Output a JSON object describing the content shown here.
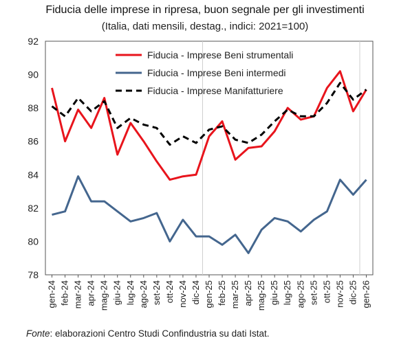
{
  "chart_data": {
    "type": "line",
    "title": "Fiducia delle imprese in ripresa, buon segnale per gli investimenti",
    "subtitle": "(Italia, dati mensili, destag., indici: 2021=100)",
    "source_label": "Fonte",
    "source_text": ": elaborazioni Centro Studi Confindustria su dati Istat.",
    "categories": [
      "gen-24",
      "feb-24",
      "mar-24",
      "apr-24",
      "mag-24",
      "giu-24",
      "lug-24",
      "ago-24",
      "set-24",
      "ott-24",
      "nov-24",
      "dic-24",
      "gen-25",
      "feb-25",
      "mar-25",
      "apr-25",
      "mag-25",
      "giu-25",
      "lug-25",
      "ago-25",
      "set-25",
      "ott-25",
      "nov-25",
      "dic-25",
      "gen-26"
    ],
    "ylim": [
      78,
      92
    ],
    "yticks": [
      78,
      80,
      82,
      84,
      86,
      88,
      90,
      92
    ],
    "grid": false,
    "legend_position": "top-right",
    "series": [
      {
        "name": "Fiducia - Imprese Beni strumentali",
        "color": "#e8141c",
        "style": "solid",
        "values": [
          89.2,
          86.0,
          87.9,
          86.8,
          88.6,
          85.2,
          87.1,
          86.0,
          84.8,
          83.7,
          83.9,
          84.0,
          86.3,
          87.2,
          84.9,
          85.6,
          85.7,
          86.6,
          88.0,
          87.3,
          87.5,
          89.2,
          90.2,
          87.8,
          89.1
        ]
      },
      {
        "name": "Fiducia - Imprese Beni intermedi",
        "color": "#44668e",
        "style": "solid",
        "values": [
          81.6,
          81.8,
          83.9,
          82.4,
          82.4,
          81.8,
          81.2,
          81.4,
          81.7,
          80.0,
          81.3,
          80.3,
          80.3,
          79.8,
          80.4,
          79.3,
          80.7,
          81.4,
          81.2,
          80.6,
          81.3,
          81.8,
          83.7,
          82.8,
          83.7
        ]
      },
      {
        "name": "Fiducia - Imprese Manifatturiere",
        "color": "#000000",
        "style": "dashed",
        "values": [
          88.1,
          87.5,
          88.6,
          87.8,
          88.4,
          86.8,
          87.4,
          87.0,
          86.8,
          85.8,
          86.3,
          85.9,
          86.7,
          86.9,
          86.1,
          85.9,
          86.4,
          87.2,
          87.9,
          87.5,
          87.5,
          88.3,
          89.5,
          88.5,
          89.1
        ]
      }
    ]
  }
}
